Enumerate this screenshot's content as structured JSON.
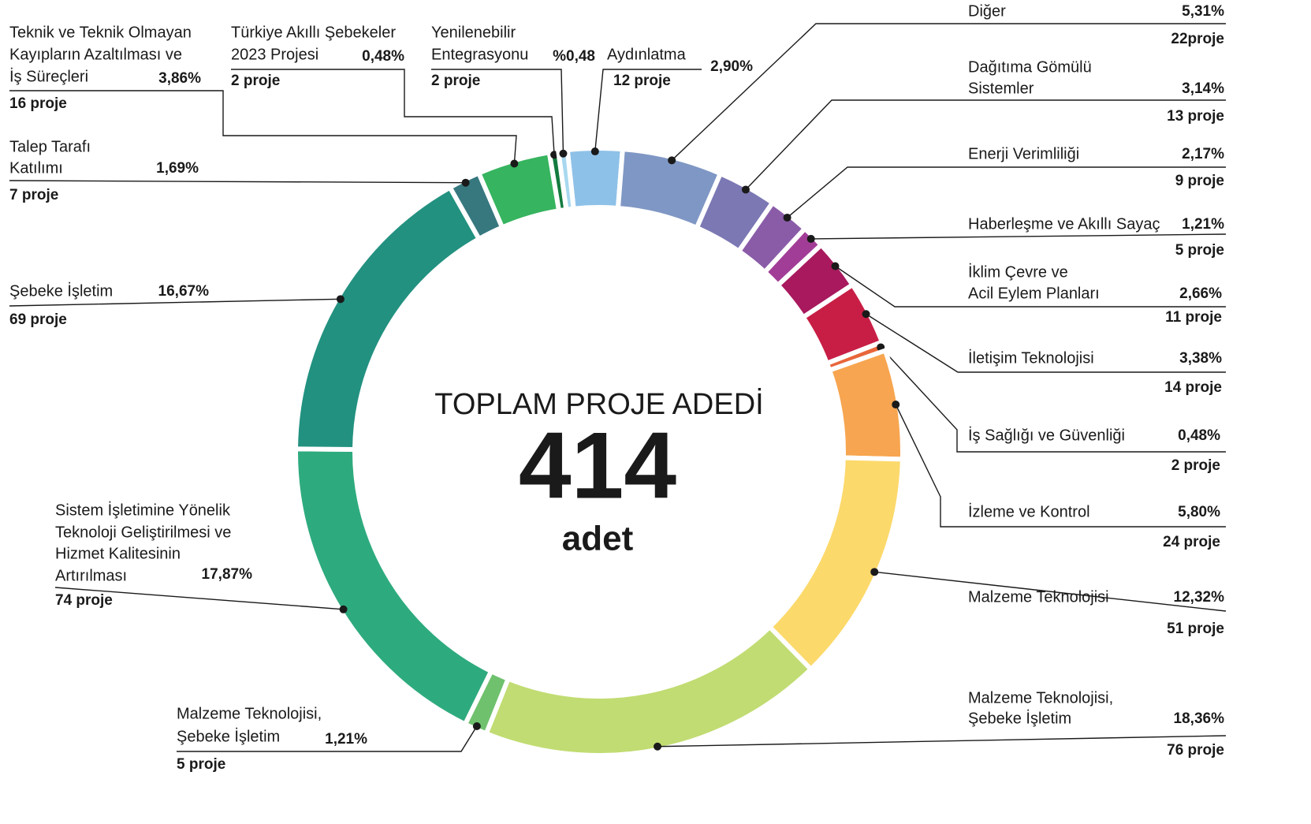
{
  "chart_data": {
    "type": "donut",
    "center_title": "TOPLAM PROJE ADEDİ",
    "total": 414,
    "total_unit": "adet",
    "categories": [
      [
        "Aydınlatma"
      ],
      [
        "Diğer"
      ],
      [
        "Dağıtıma Gömülü",
        "Sistemler"
      ],
      [
        "Enerji Verimliliği"
      ],
      [
        "Haberleşme ve Akıllı Sayaç"
      ],
      [
        "İklim Çevre ve",
        "Acil Eylem Planları"
      ],
      [
        "İletişim Teknolojisi"
      ],
      [
        "İş Sağlığı ve Güvenliği"
      ],
      [
        "İzleme ve Kontrol"
      ],
      [
        "Malzeme Teknolojisi"
      ],
      [
        "Malzeme Teknolojisi,",
        "Şebeke İşletim"
      ],
      [
        "Malzeme Teknolojisi,",
        "Şebeke İşletim"
      ],
      [
        "Sistem İşletimine Yönelik",
        "Teknoloji Geliştirilmesi ve",
        "Hizmet Kalitesinin",
        "Artırılması"
      ],
      [
        "Şebeke İşletim"
      ],
      [
        "Talep Tarafı",
        "Katılımı"
      ],
      [
        "Teknik ve Teknik Olmayan",
        "Kayıpların Azaltılması ve",
        "İş Süreçleri"
      ],
      [
        "Türkiye Akıllı Şebekeler",
        "2023 Projesi"
      ],
      [
        "Yenilenebilir",
        "Entegrasyonu"
      ]
    ],
    "values": [
      2.9,
      5.31,
      3.14,
      2.17,
      1.21,
      2.66,
      3.38,
      0.48,
      5.8,
      12.32,
      18.36,
      1.21,
      17.87,
      16.67,
      1.69,
      3.86,
      0.48,
      0.48
    ],
    "value_labels": [
      "2,90%",
      "5,31%",
      "3,14%",
      "2,17%",
      "1,21%",
      "2,66%",
      "3,38%",
      "0,48%",
      "5,80%",
      "12,32%",
      "18,36%",
      "1,21%",
      "17,87%",
      "16,67%",
      "1,69%",
      "3,86%",
      "0,48%",
      "%0,48"
    ],
    "count_labels": [
      "12 proje",
      "22proje",
      "13 proje",
      "9 proje",
      "5 proje",
      "11 proje",
      "14 proje",
      "2 proje",
      "24 proje",
      "51 proje",
      "76 proje",
      "5 proje",
      "74 proje",
      "69 proje",
      "7 proje",
      "16 proje",
      "2 proje",
      "2 proje"
    ],
    "colors": [
      "#8ec1e8",
      "#7f97c4",
      "#7b78b4",
      "#8a5ca8",
      "#a23d97",
      "#a8195e",
      "#c81e45",
      "#e8663a",
      "#f7a550",
      "#fcd96b",
      "#c1dc72",
      "#6fc16e",
      "#2eab7e",
      "#229180",
      "#37787f",
      "#36b45f",
      "#137b3f",
      "#a8d8ef"
    ]
  }
}
